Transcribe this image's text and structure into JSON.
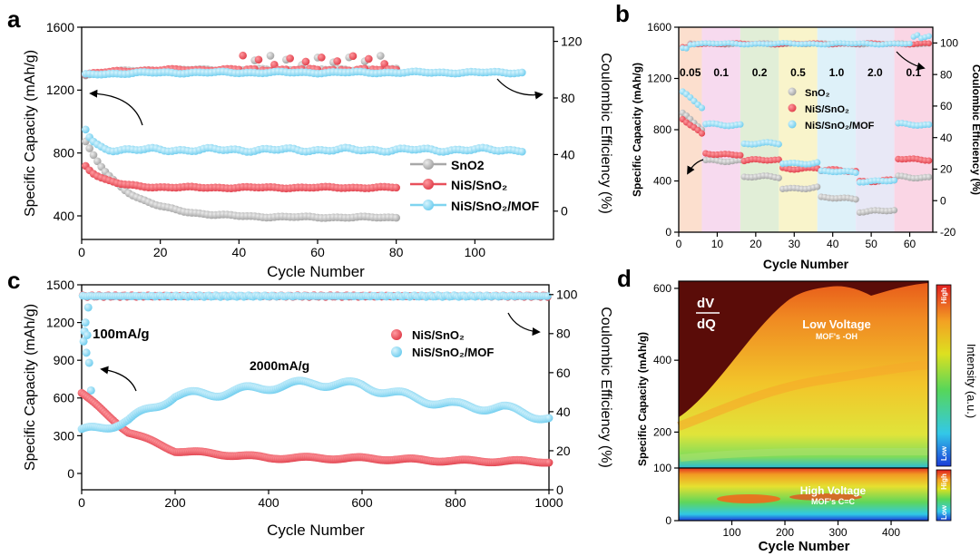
{
  "panels": [
    {
      "id": "a",
      "label": "a"
    },
    {
      "id": "b",
      "label": "b"
    },
    {
      "id": "c",
      "label": "c"
    },
    {
      "id": "d",
      "label": "d"
    }
  ],
  "colors": {
    "SnO2": "#b4b4b4",
    "NiS_SnO2": "#e8505b",
    "NiS_SnO2_MOF": "#7fd4ef",
    "CE_SnO2": "#b4b4b4",
    "CE_NiS": "#ee5c64",
    "CE_MOF": "#8fd9f2"
  },
  "chart_data": [
    {
      "panel": "a",
      "type": "scatter",
      "xlabel": "Cycle Number",
      "ylabel": "Specific Capacity (mAh/g)",
      "y2label": "Coulombic Efficiency (%)",
      "xlim": [
        0,
        120
      ],
      "ylim": [
        250,
        1600
      ],
      "y2lim": [
        -20,
        130
      ],
      "xticks": [
        0,
        20,
        40,
        60,
        80,
        100
      ],
      "yticks": [
        400,
        800,
        1200,
        1600
      ],
      "y2ticks": [
        0,
        40,
        80,
        120
      ],
      "legend": [
        "SnO2",
        "NiS/SnO₂",
        "NiS/SnO₂/MOF"
      ],
      "series": [
        {
          "name": "SnO2",
          "x_end": 80,
          "capacity": {
            "start": 870,
            "end": 390,
            "decay": 10
          },
          "ce": {
            "start": 96,
            "end": 100
          }
        },
        {
          "name": "NiS/SnO₂",
          "x_end": 80,
          "capacity": {
            "start": 720,
            "end": 580,
            "decay": 5
          },
          "ce": {
            "start": 96,
            "end": 100
          }
        },
        {
          "name": "NiS/SnO₂/MOF",
          "x_end": 112,
          "capacity": {
            "start": 950,
            "end": 820,
            "decay": 2
          },
          "ce": {
            "start": 96,
            "end": 98
          }
        }
      ]
    },
    {
      "panel": "b",
      "type": "scatter",
      "xlabel": "Cycle Number",
      "ylabel": "Specific Capacity (mAh/g)",
      "y2label": "Coulombic Efficiency (%)",
      "xlim": [
        0,
        66
      ],
      "ylim": [
        0,
        1600
      ],
      "y2lim": [
        -20,
        110
      ],
      "xticks": [
        0,
        10,
        20,
        30,
        40,
        50,
        60
      ],
      "yticks": [
        0,
        400,
        800,
        1200,
        1600
      ],
      "y2ticks": [
        -20,
        0,
        20,
        40,
        60,
        80,
        100
      ],
      "rates": [
        "0.05",
        "0.1",
        "0.2",
        "0.5",
        "1.0",
        "2.0",
        "0.1"
      ],
      "rate_bounds": [
        0,
        6,
        16,
        26,
        36,
        46,
        56,
        66
      ],
      "legend": [
        "SnO₂",
        "NiS/SnO₂",
        "NiS/SnO₂/MOF"
      ],
      "series": [
        {
          "name": "SnO₂",
          "levels": [
            800,
            560,
            430,
            345,
            265,
            165,
            430
          ]
        },
        {
          "name": "NiS/SnO₂",
          "levels": [
            760,
            610,
            560,
            500,
            480,
            400,
            570
          ]
        },
        {
          "name": "NiS/SnO₂/MOF",
          "levels": [
            970,
            840,
            690,
            540,
            470,
            400,
            840
          ]
        }
      ]
    },
    {
      "panel": "c",
      "type": "scatter",
      "xlabel": "Cycle Number",
      "ylabel": "Specific Capacity (mAh/g)",
      "y2label": "Coulombic Efficiency (%)",
      "xlim": [
        0,
        1000
      ],
      "ylim": [
        -130,
        1500
      ],
      "y2lim": [
        0,
        105
      ],
      "xticks": [
        0,
        200,
        400,
        600,
        800,
        1000
      ],
      "yticks": [
        0,
        300,
        600,
        900,
        1200,
        1500
      ],
      "y2ticks": [
        0,
        20,
        40,
        60,
        80,
        100
      ],
      "annotations": [
        "100mA/g",
        "2000mA/g"
      ],
      "legend": [
        "NiS/SnO₂",
        "NiS/SnO₂/MOF"
      ],
      "series": [
        {
          "name": "NiS/SnO₂",
          "capacity_points": [
            [
              0,
              640
            ],
            [
              50,
              480
            ],
            [
              100,
              330
            ],
            [
              200,
              180
            ],
            [
              400,
              125
            ],
            [
              600,
              120
            ],
            [
              800,
              100
            ],
            [
              1000,
              95
            ]
          ]
        },
        {
          "name": "NiS/SnO₂/MOF",
          "capacity_points": [
            [
              0,
              330
            ],
            [
              100,
              420
            ],
            [
              200,
              620
            ],
            [
              300,
              640
            ],
            [
              400,
              690
            ],
            [
              500,
              720
            ],
            [
              600,
              700
            ],
            [
              700,
              610
            ],
            [
              800,
              540
            ],
            [
              900,
              520
            ],
            [
              1000,
              440
            ]
          ]
        }
      ]
    },
    {
      "panel": "d",
      "type": "heatmap",
      "xlabel": "Cycle Number",
      "ylabel": "Specific Capacity (mAh/g)",
      "colorbar_label": "Intensity (a.u.)",
      "xlim": [
        0,
        470
      ],
      "xticks": [
        100,
        200,
        300,
        400
      ],
      "yticks": [
        0,
        100,
        200,
        400,
        600
      ],
      "title_line1": "dV",
      "title_line2": "dQ",
      "low_voltage_label": "Low Voltage",
      "low_voltage_sub": "MOF's -OH",
      "high_voltage_label": "High Voltage",
      "high_voltage_sub": "MOF's C=C",
      "cbar_high": "High",
      "cbar_low": "Low"
    }
  ]
}
